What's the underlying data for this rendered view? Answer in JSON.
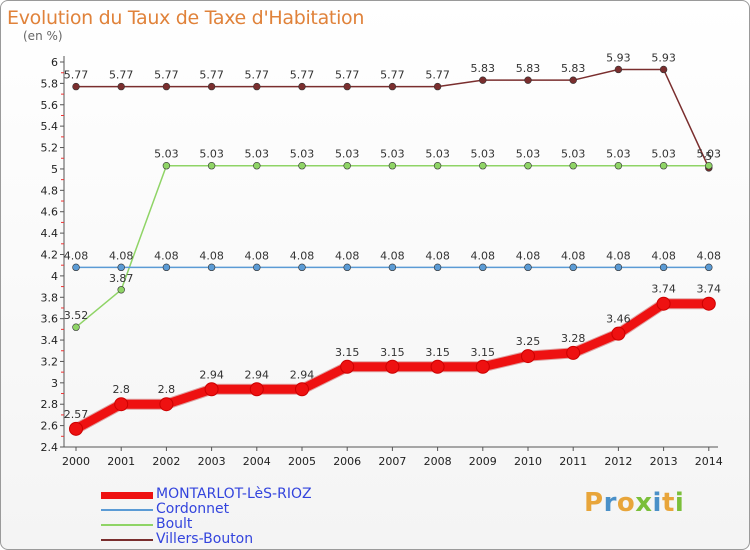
{
  "title": "Evolution du Taux de Taxe d'Habitation",
  "subtitle": "(en %)",
  "brand": {
    "letters": [
      "P",
      "r",
      "o",
      "x",
      "i",
      "t",
      "i"
    ],
    "colors": [
      "#e8a53a",
      "#4a90c8",
      "#e8a53a",
      "#7bbf3a",
      "#4a90c8",
      "#e8a53a",
      "#7bbf3a"
    ]
  },
  "chart_data": {
    "type": "line",
    "x": [
      "2000",
      "2001",
      "2002",
      "2003",
      "2004",
      "2005",
      "2006",
      "2007",
      "2008",
      "2009",
      "2010",
      "2011",
      "2012",
      "2013",
      "2014"
    ],
    "ylim": [
      2.4,
      6
    ],
    "yticks": [
      "2.4",
      "2.6",
      "2.8",
      "3",
      "3.2",
      "3.4",
      "3.6",
      "3.8",
      "4",
      "4.2",
      "4.4",
      "4.6",
      "4.8",
      "5",
      "5.2",
      "5.4",
      "5.6",
      "5.8",
      "6"
    ],
    "grid": false,
    "legend_position": "bottom-left",
    "series": [
      {
        "name": "Villers-Bouton",
        "color": "#7a2e2e",
        "values": [
          5.77,
          5.77,
          5.77,
          5.77,
          5.77,
          5.77,
          5.77,
          5.77,
          5.77,
          5.83,
          5.83,
          5.83,
          5.93,
          5.93,
          5.01
        ],
        "labels": [
          "5.77",
          "5.77",
          "5.77",
          "5.77",
          "5.77",
          "5.77",
          "5.77",
          "5.77",
          "5.77",
          "5.83",
          "5.83",
          "5.83",
          "5.93",
          "5.93",
          "5"
        ]
      },
      {
        "name": "Boult",
        "color": "#8fd466",
        "values": [
          3.52,
          3.87,
          5.03,
          5.03,
          5.03,
          5.03,
          5.03,
          5.03,
          5.03,
          5.03,
          5.03,
          5.03,
          5.03,
          5.03,
          5.03
        ],
        "labels": [
          "3.52",
          "3.87",
          "5.03",
          "5.03",
          "5.03",
          "5.03",
          "5.03",
          "5.03",
          "5.03",
          "5.03",
          "5.03",
          "5.03",
          "5.03",
          "5.03",
          "5.03"
        ]
      },
      {
        "name": "Cordonnet",
        "color": "#5b9bd5",
        "values": [
          4.08,
          4.08,
          4.08,
          4.08,
          4.08,
          4.08,
          4.08,
          4.08,
          4.08,
          4.08,
          4.08,
          4.08,
          4.08,
          4.08,
          4.08
        ],
        "labels": [
          "4.08",
          "4.08",
          "4.08",
          "4.08",
          "4.08",
          "4.08",
          "4.08",
          "4.08",
          "4.08",
          "4.08",
          "4.08",
          "4.08",
          "4.08",
          "4.08",
          "4.08"
        ]
      },
      {
        "name": "MONTARLOT-LèS-RIOZ",
        "color": "#ee1111",
        "bold": true,
        "values": [
          2.57,
          2.8,
          2.8,
          2.94,
          2.94,
          2.94,
          3.15,
          3.15,
          3.15,
          3.15,
          3.25,
          3.28,
          3.46,
          3.74,
          3.74
        ],
        "labels": [
          "2.57",
          "2.8",
          "2.8",
          "2.94",
          "2.94",
          "2.94",
          "3.15",
          "3.15",
          "3.15",
          "3.15",
          "3.25",
          "3.28",
          "3.46",
          "3.74",
          "3.74"
        ]
      }
    ]
  },
  "legend": [
    {
      "name": "MONTARLOT-LèS-RIOZ",
      "color": "#ee1111",
      "text_color": "#3344dd",
      "bold": true
    },
    {
      "name": "Cordonnet",
      "color": "#5b9bd5",
      "text_color": "#3344dd"
    },
    {
      "name": "Boult",
      "color": "#8fd466",
      "text_color": "#3344dd"
    },
    {
      "name": "Villers-Bouton",
      "color": "#7a2e2e",
      "text_color": "#3344dd"
    }
  ]
}
